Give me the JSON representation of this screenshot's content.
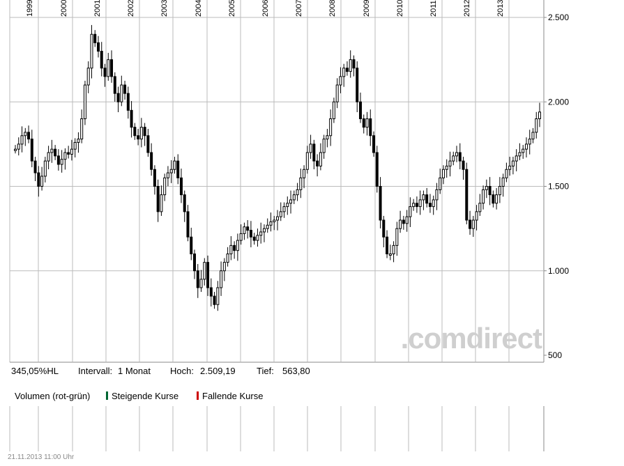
{
  "info": {
    "perf": "345,05%HL",
    "interval_label": "Intervall:",
    "interval_value": "1 Monat",
    "high_label": "Hoch:",
    "high_value": "2.509,19",
    "low_label": "Tief:",
    "low_value": "563,80"
  },
  "volume_legend": {
    "title": "Volumen (rot-grün)",
    "rising": "Steigende Kurse",
    "falling": "Fallende Kurse"
  },
  "timestamp": "21.11.2013 11:00 Uhr",
  "watermark": ".comdirect",
  "colors": {
    "rising": "#006633",
    "falling": "#cc0000",
    "grid": "#bbbbbb",
    "candle": "#000000"
  },
  "chart_data": {
    "type": "candlestick",
    "y_ticks": [
      "2.500",
      "2.000",
      "1.500",
      "1.000",
      "500"
    ],
    "y_tick_values": [
      2500,
      2000,
      1500,
      1000,
      500
    ],
    "ylim": [
      500,
      2500
    ],
    "year_labels": [
      "1999",
      "2000",
      "2001",
      "2002",
      "2003",
      "2004",
      "2005",
      "2006",
      "2007",
      "2008",
      "2009",
      "2010",
      "2011",
      "2012",
      "2013"
    ],
    "grid": true,
    "axis_position": "right",
    "high": 2509.19,
    "low": 563.8,
    "series": [
      {
        "values": [
          1720,
          1750,
          1800,
          1820,
          1780,
          1650,
          1580,
          1500,
          1560,
          1650,
          1700,
          1720,
          1680,
          1630,
          1660,
          1700,
          1690,
          1720,
          1760,
          1780,
          1900,
          2100,
          2200,
          2400,
          2350,
          2300,
          2200,
          2150,
          2250,
          2150,
          2050,
          2000,
          2100,
          2050,
          1950,
          1850,
          1800,
          1780,
          1850,
          1800,
          1700,
          1600,
          1500,
          1350,
          1450,
          1550,
          1580,
          1600,
          1650,
          1550,
          1450,
          1350,
          1200,
          1100,
          1000,
          900,
          950,
          1050,
          900,
          850,
          800,
          900,
          1000,
          1050,
          1100,
          1150,
          1120,
          1180,
          1220,
          1260,
          1240,
          1200,
          1180,
          1210,
          1230,
          1250,
          1270,
          1290,
          1300,
          1320,
          1350,
          1380,
          1400,
          1420,
          1450,
          1480,
          1550,
          1600,
          1700,
          1750,
          1650,
          1620,
          1700,
          1780,
          1800,
          1900,
          2000,
          2100,
          2150,
          2200,
          2180,
          2250,
          2200,
          2000,
          1900,
          1850,
          1900,
          1800,
          1700,
          1500,
          1300,
          1200,
          1100,
          1100,
          1150,
          1250,
          1300,
          1280,
          1320,
          1380,
          1400,
          1380,
          1420,
          1450,
          1400,
          1380,
          1420,
          1480,
          1550,
          1600,
          1620,
          1650,
          1680,
          1700,
          1650,
          1600,
          1300,
          1250,
          1300,
          1350,
          1400,
          1480,
          1500,
          1450,
          1400,
          1450,
          1500,
          1550,
          1600,
          1620,
          1650,
          1680,
          1700,
          1720,
          1750,
          1780,
          1820,
          1900,
          1940
        ]
      }
    ]
  }
}
